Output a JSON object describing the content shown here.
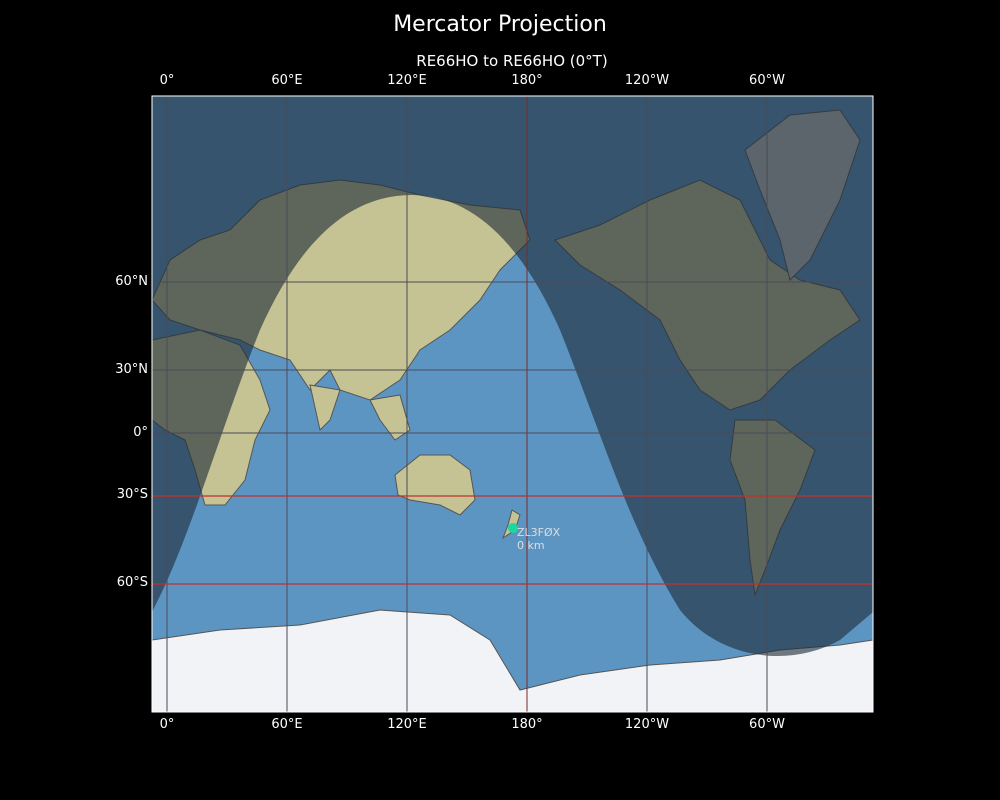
{
  "title": "Mercator Projection",
  "subtitle": "RE66HO to RE66HO (0°T)",
  "x_ticks": [
    "0°",
    "60°E",
    "120°E",
    "180°",
    "120°W",
    "60°W"
  ],
  "y_ticks": [
    "60°N",
    "30°N",
    "0°",
    "30°S",
    "60°S"
  ],
  "station": {
    "callsign": "ZL3FØX",
    "distance": "0 km",
    "lat": -43.5,
    "lon": 172.6,
    "color": "#1ad8a0"
  },
  "colors": {
    "ocean": "#5d95c2",
    "land": "#c9c596",
    "night_shade": "#1f2c38",
    "highlight_parallel": "#c0302a",
    "grid": "#4a4a55"
  },
  "terminator": {
    "day_side": "below curve",
    "subsolar_longitude_approx": "125°E"
  },
  "highlighted_parallels": [
    "30°S",
    "60°S"
  ]
}
